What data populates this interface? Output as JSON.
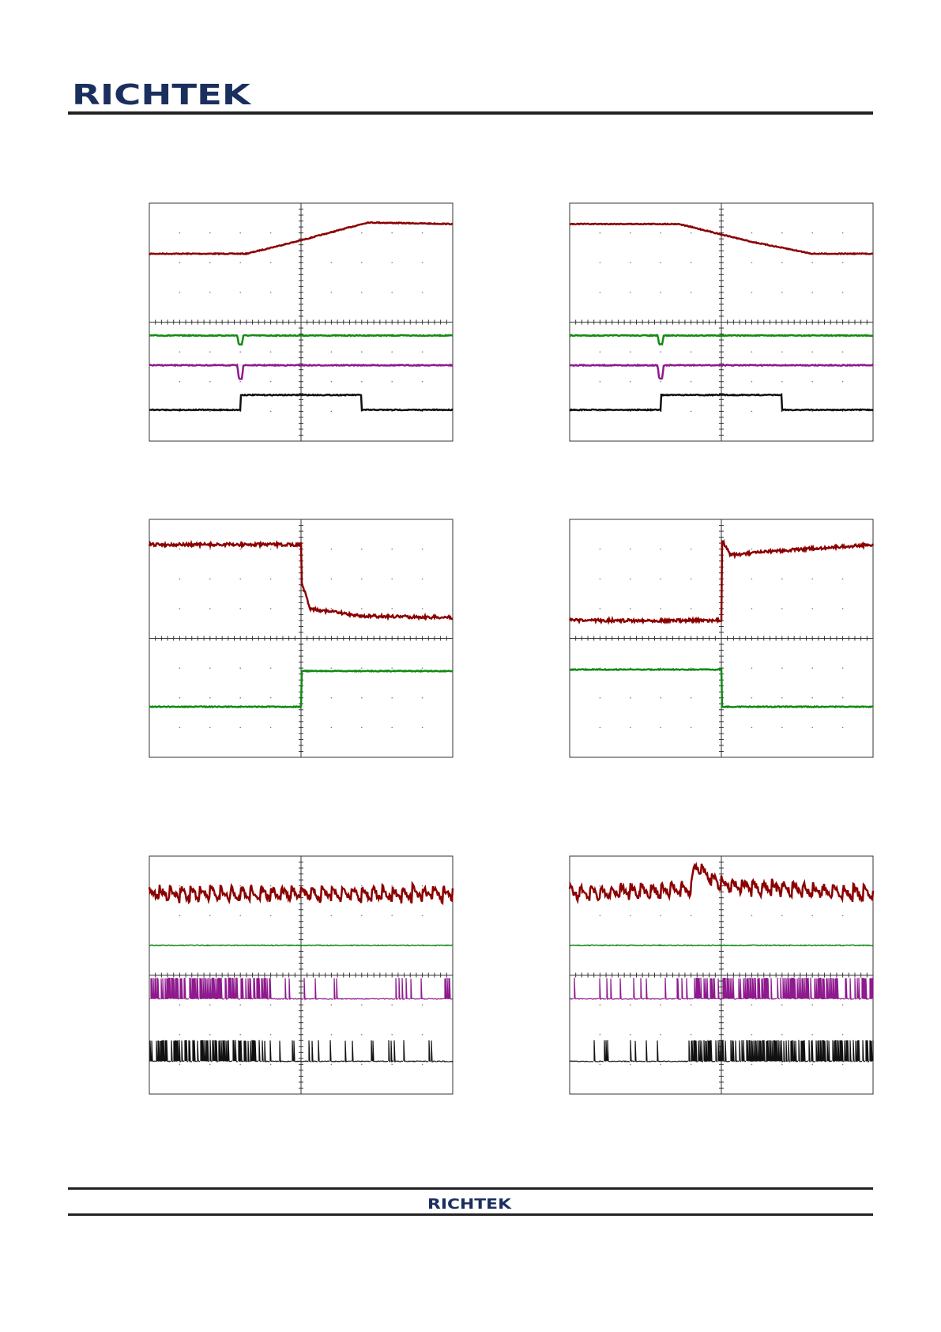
{
  "header": {
    "logo": "RICHTEK"
  },
  "footer": {
    "logo": "RICHTEK"
  }
}
